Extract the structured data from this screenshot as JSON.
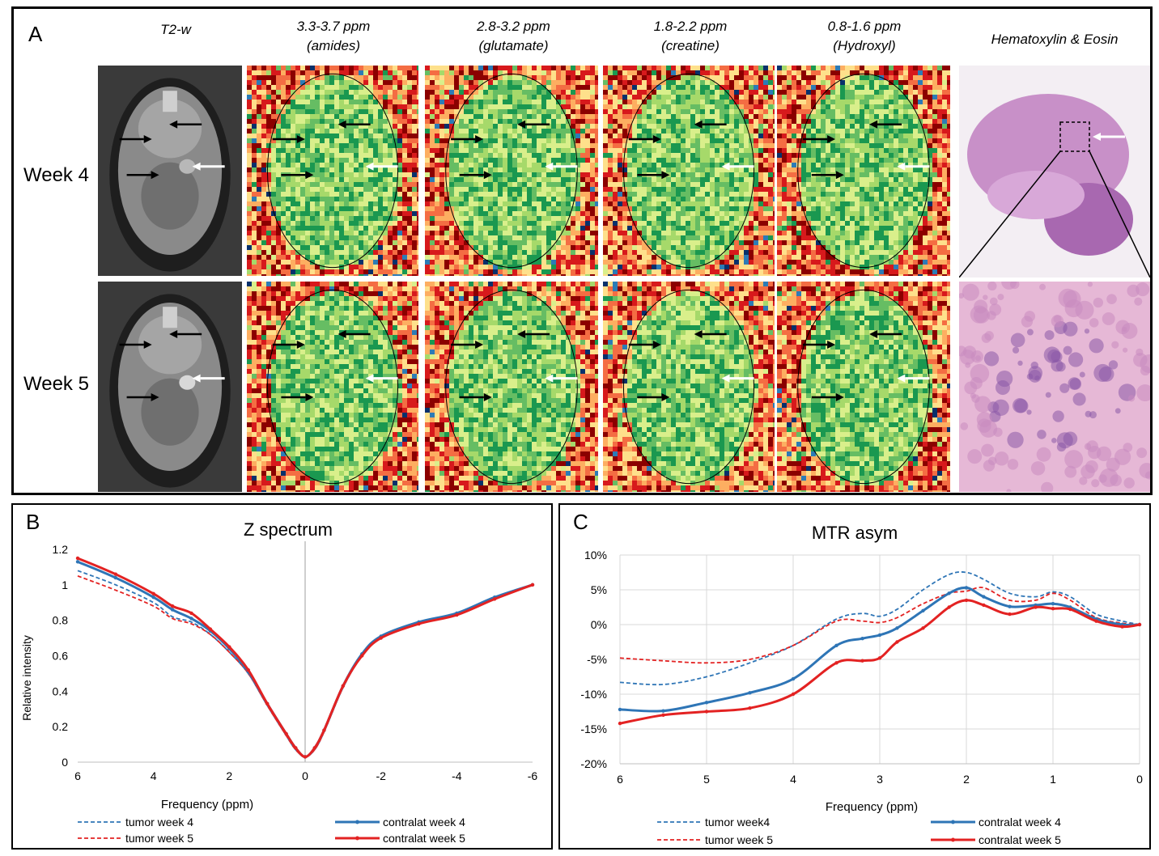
{
  "panel_a": {
    "letter": "A",
    "columns": [
      {
        "line1": "T2-w",
        "line2": ""
      },
      {
        "line1": "3.3-3.7 ppm",
        "line2": "(amides)"
      },
      {
        "line1": "2.8-3.2 ppm",
        "line2": "(glutamate)"
      },
      {
        "line1": "1.8-2.2 ppm",
        "line2": "(creatine)"
      },
      {
        "line1": "0.8-1.6 ppm",
        "line2": "(Hydroxyl)"
      },
      {
        "line1": "Hematoxylin & Eosin",
        "line2": ""
      }
    ],
    "rows": [
      "Week 4",
      "Week 5"
    ]
  },
  "panel_b": {
    "letter": "B",
    "chart_data": {
      "type": "line",
      "title": "Z spectrum",
      "xlabel": "Frequency (ppm)",
      "ylabel": "Relative intensity",
      "xlim": [
        6,
        -6
      ],
      "ylim": [
        0,
        1.2
      ],
      "x_ticks": [
        6,
        4,
        2,
        0,
        -2,
        -4,
        -6
      ],
      "y_ticks": [
        0,
        0.2,
        0.4,
        0.6,
        0.8,
        1,
        1.2
      ],
      "x": [
        6,
        5,
        4,
        3.5,
        3,
        2.5,
        2,
        1.5,
        1,
        0.5,
        0.25,
        0,
        -0.25,
        -0.5,
        -1,
        -1.5,
        -2,
        -3,
        -4,
        -5,
        -6
      ],
      "series": [
        {
          "name": "tumor week 4",
          "style": "dashed",
          "color": "#2e75b6",
          "marker": false,
          "values": [
            1.08,
            1.0,
            0.9,
            0.82,
            0.79,
            0.72,
            0.62,
            0.5,
            0.32,
            0.15,
            0.07,
            0.03,
            0.07,
            0.17,
            0.42,
            0.6,
            0.7,
            0.79,
            0.84,
            0.93,
            1.0
          ]
        },
        {
          "name": "tumor week 5",
          "style": "dashed",
          "color": "#e32222",
          "marker": false,
          "values": [
            1.05,
            0.97,
            0.88,
            0.81,
            0.78,
            0.72,
            0.62,
            0.5,
            0.32,
            0.15,
            0.07,
            0.03,
            0.07,
            0.17,
            0.42,
            0.6,
            0.7,
            0.78,
            0.84,
            0.93,
            1.0
          ]
        },
        {
          "name": "contralat week 4",
          "style": "solid",
          "color": "#2e75b6",
          "marker": true,
          "values": [
            1.13,
            1.04,
            0.93,
            0.86,
            0.81,
            0.74,
            0.64,
            0.51,
            0.33,
            0.16,
            0.08,
            0.03,
            0.08,
            0.18,
            0.43,
            0.61,
            0.71,
            0.79,
            0.84,
            0.93,
            1.0
          ]
        },
        {
          "name": "contralat week 5",
          "style": "solid",
          "color": "#e32222",
          "marker": true,
          "values": [
            1.15,
            1.06,
            0.95,
            0.88,
            0.84,
            0.75,
            0.65,
            0.52,
            0.33,
            0.16,
            0.08,
            0.03,
            0.08,
            0.18,
            0.43,
            0.6,
            0.7,
            0.78,
            0.83,
            0.92,
            1.0
          ]
        }
      ]
    }
  },
  "panel_c": {
    "letter": "C",
    "chart_data": {
      "type": "line",
      "title": "MTR asym",
      "xlabel": "Frequency (ppm)",
      "ylabel": "",
      "xlim": [
        6,
        0
      ],
      "ylim": [
        -20,
        10
      ],
      "x_ticks": [
        6,
        5,
        4,
        3,
        2,
        1,
        0
      ],
      "y_ticks": [
        -20,
        -15,
        -10,
        -5,
        0,
        5,
        10
      ],
      "y_tick_labels": [
        "-20%",
        "-15%",
        "-10%",
        "-5%",
        "0%",
        "5%",
        "10%"
      ],
      "x": [
        6,
        5.5,
        5,
        4.5,
        4,
        3.5,
        3.2,
        3,
        2.8,
        2.5,
        2.2,
        2,
        1.8,
        1.5,
        1.2,
        1,
        0.8,
        0.5,
        0.2,
        0
      ],
      "series": [
        {
          "name": "tumor week4",
          "style": "dashed",
          "color": "#2e75b6",
          "marker": false,
          "values": [
            -8.3,
            -8.6,
            -7.5,
            -5.5,
            -3.0,
            0.8,
            1.6,
            1.2,
            2.2,
            5.0,
            7.2,
            7.5,
            6.5,
            4.5,
            4.0,
            4.7,
            4.0,
            1.5,
            0.5,
            0.0
          ]
        },
        {
          "name": "tumor week 5",
          "style": "dashed",
          "color": "#e32222",
          "marker": false,
          "values": [
            -4.8,
            -5.2,
            -5.5,
            -5.0,
            -3.0,
            0.5,
            0.5,
            0.3,
            1.0,
            3.0,
            4.5,
            4.8,
            5.3,
            3.5,
            3.5,
            4.5,
            3.5,
            1.0,
            0.2,
            0.0
          ]
        },
        {
          "name": "contralat week 4",
          "style": "solid",
          "color": "#2e75b6",
          "marker": true,
          "values": [
            -12.2,
            -12.4,
            -11.2,
            -9.8,
            -7.8,
            -3.0,
            -2.0,
            -1.5,
            -0.5,
            2.0,
            4.5,
            5.3,
            4.0,
            2.6,
            2.8,
            3.0,
            2.5,
            0.8,
            0.0,
            0.0
          ]
        },
        {
          "name": "contralat week 5",
          "style": "solid",
          "color": "#e32222",
          "marker": true,
          "values": [
            -14.2,
            -13.0,
            -12.5,
            -12.0,
            -10.0,
            -5.5,
            -5.2,
            -4.8,
            -2.5,
            -0.5,
            2.5,
            3.5,
            2.8,
            1.5,
            2.5,
            2.3,
            2.2,
            0.5,
            -0.3,
            0.0
          ]
        }
      ]
    }
  },
  "colors": {
    "tumor": "#2e75b6",
    "red": "#e32222",
    "frame": "#000000"
  }
}
